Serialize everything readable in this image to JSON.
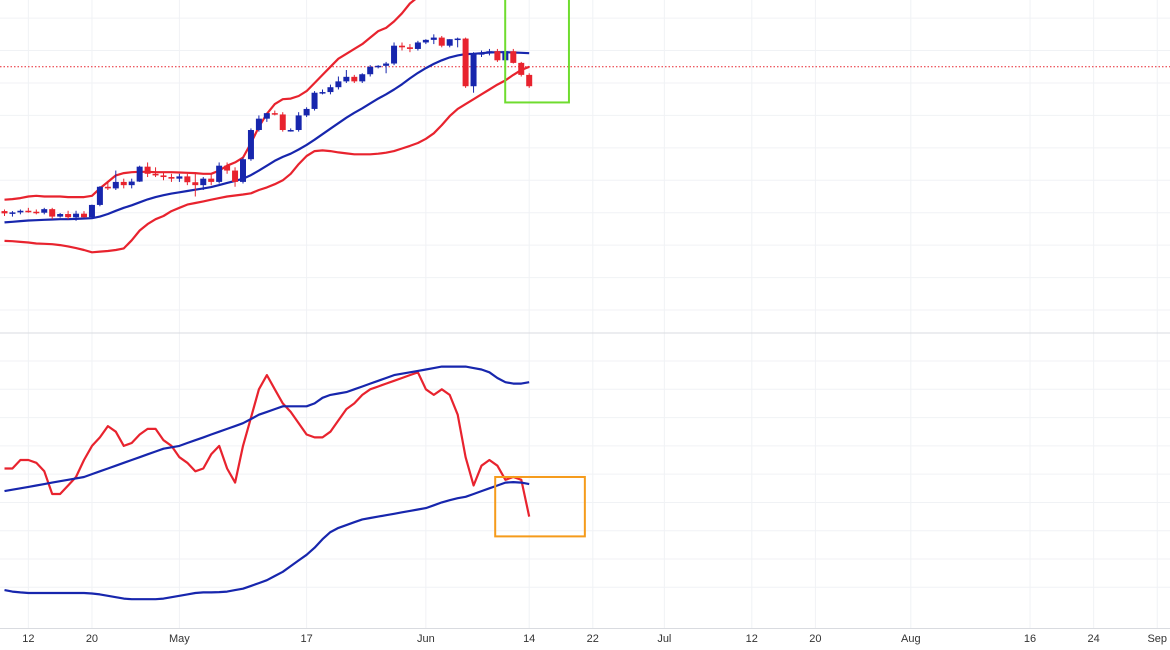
{
  "chart_data": [
    {
      "type": "candlestick",
      "panel": "price",
      "overlay": "bollinger-bands",
      "price_range": [
        0,
        100
      ],
      "grid": true,
      "dates": [
        "Apr 9",
        "Apr 10",
        "Apr 11",
        "Apr 12",
        "Apr 13",
        "Apr 14",
        "Apr 15",
        "Apr 16",
        "Apr 17",
        "Apr 18",
        "Apr 19",
        "Apr 20",
        "Apr 21",
        "Apr 22",
        "Apr 23",
        "Apr 24",
        "Apr 25",
        "Apr 26",
        "Apr 27",
        "Apr 28",
        "Apr 29",
        "Apr 30",
        "May 1",
        "May 2",
        "May 3",
        "May 4",
        "May 5",
        "May 6",
        "May 7",
        "May 8",
        "May 9",
        "May 10",
        "May 11",
        "May 12",
        "May 13",
        "May 14",
        "May 15",
        "May 16",
        "May 17",
        "May 18",
        "May 19",
        "May 20",
        "May 21",
        "May 22",
        "May 23",
        "May 24",
        "May 25",
        "May 26",
        "May 27",
        "May 28",
        "May 29",
        "May 30",
        "May 31",
        "Jun 1",
        "Jun 2",
        "Jun 3",
        "Jun 4",
        "Jun 5",
        "Jun 6",
        "Jun 7",
        "Jun 8",
        "Jun 9",
        "Jun 10",
        "Jun 11",
        "Jun 12",
        "Jun 13",
        "Jun 14"
      ],
      "candles": [
        [
          30.5,
          31.0,
          29.0,
          29.8
        ],
        [
          29.8,
          30.5,
          28.8,
          30.1
        ],
        [
          30.1,
          31.0,
          29.5,
          30.6
        ],
        [
          30.6,
          31.5,
          30.0,
          30.3
        ],
        [
          30.3,
          31.0,
          29.5,
          30.0
        ],
        [
          30.0,
          31.5,
          29.5,
          31.1
        ],
        [
          31.1,
          31.5,
          28.0,
          28.8
        ],
        [
          28.8,
          29.9,
          28.5,
          29.6
        ],
        [
          29.6,
          30.6,
          28.0,
          28.6
        ],
        [
          28.6,
          30.6,
          27.5,
          29.7
        ],
        [
          29.7,
          30.5,
          28.5,
          28.6
        ],
        [
          28.6,
          32.5,
          28.5,
          32.4
        ],
        [
          32.4,
          38.2,
          32.0,
          38.0
        ],
        [
          38.0,
          39.5,
          37.0,
          37.5
        ],
        [
          37.5,
          43.0,
          37.0,
          39.5
        ],
        [
          39.5,
          40.5,
          37.5,
          38.5
        ],
        [
          38.5,
          40.5,
          37.5,
          39.6
        ],
        [
          39.6,
          44.5,
          39.5,
          44.2
        ],
        [
          44.2,
          45.5,
          41.0,
          42.0
        ],
        [
          42.0,
          44.0,
          41.0,
          41.5
        ],
        [
          41.5,
          42.5,
          40.0,
          41.0
        ],
        [
          41.0,
          42.0,
          39.5,
          40.5
        ],
        [
          40.5,
          42.0,
          39.5,
          41.2
        ],
        [
          41.2,
          42.0,
          38.5,
          39.4
        ],
        [
          39.4,
          42.0,
          35.0,
          38.5
        ],
        [
          38.5,
          41.0,
          37.0,
          40.5
        ],
        [
          40.5,
          42.0,
          38.5,
          39.5
        ],
        [
          39.5,
          45.5,
          39.0,
          44.5
        ],
        [
          44.5,
          45.5,
          42.0,
          43.0
        ],
        [
          43.0,
          44.0,
          38.0,
          39.5
        ],
        [
          39.5,
          47.0,
          39.0,
          46.5
        ],
        [
          46.5,
          56.0,
          46.0,
          55.5
        ],
        [
          55.5,
          60.0,
          55.0,
          59.0
        ],
        [
          59.0,
          60.8,
          58.0,
          60.7
        ],
        [
          60.7,
          61.5,
          60.0,
          60.3
        ],
        [
          60.3,
          61.0,
          55.0,
          55.5
        ],
        [
          55.5,
          56.0,
          55.0,
          55.5
        ],
        [
          55.5,
          61.0,
          55.0,
          60.0
        ],
        [
          60.0,
          62.5,
          59.5,
          62.0
        ],
        [
          62.0,
          67.5,
          61.5,
          67.0
        ],
        [
          67.0,
          68.0,
          66.5,
          67.2
        ],
        [
          67.2,
          69.5,
          66.5,
          68.7
        ],
        [
          68.7,
          72.0,
          68.0,
          70.5
        ],
        [
          70.5,
          74.0,
          70.0,
          71.9
        ],
        [
          71.9,
          72.5,
          70.0,
          70.5
        ],
        [
          70.5,
          73.0,
          70.0,
          72.7
        ],
        [
          72.7,
          75.5,
          72.0,
          75.0
        ],
        [
          75.0,
          75.5,
          74.5,
          75.3
        ],
        [
          75.3,
          76.5,
          73.0,
          76.0
        ],
        [
          76.0,
          82.5,
          75.5,
          81.5
        ],
        [
          81.5,
          82.5,
          80.0,
          81.0
        ],
        [
          81.0,
          82.0,
          79.5,
          80.5
        ],
        [
          80.5,
          83.0,
          80.0,
          82.5
        ],
        [
          82.5,
          83.5,
          82.0,
          83.3
        ],
        [
          83.3,
          85.0,
          82.0,
          84.0
        ],
        [
          84.0,
          84.5,
          81.0,
          81.5
        ],
        [
          81.5,
          83.5,
          81.0,
          83.5
        ],
        [
          83.5,
          84.0,
          81.0,
          83.7
        ],
        [
          83.7,
          84.0,
          68.5,
          69.0
        ],
        [
          69.0,
          79.5,
          67.0,
          79.0
        ],
        [
          79.0,
          80.0,
          78.0,
          79.2
        ],
        [
          79.2,
          80.5,
          78.5,
          79.8
        ],
        [
          79.8,
          80.5,
          76.5,
          77.0
        ],
        [
          77.0,
          80.5,
          76.0,
          79.8
        ],
        [
          79.8,
          80.5,
          76.0,
          76.2
        ],
        [
          76.2,
          76.5,
          72.0,
          72.5
        ],
        [
          72.5,
          73.0,
          68.5,
          69.0
        ]
      ],
      "bands": {
        "upper": [
          34.0,
          34.2,
          34.5,
          35.0,
          35.2,
          35.0,
          35.0,
          35.0,
          34.8,
          34.8,
          34.8,
          35.2,
          37.5,
          39.5,
          41.5,
          42.2,
          42.5,
          42.6,
          42.6,
          42.5,
          42.5,
          42.5,
          42.4,
          42.3,
          42.2,
          42.0,
          42.0,
          43.0,
          44.5,
          45.5,
          47.0,
          51.5,
          56.5,
          60.5,
          63.5,
          65.0,
          65.2,
          66.0,
          67.5,
          70.0,
          72.5,
          75.0,
          77.5,
          79.0,
          80.5,
          82.0,
          84.0,
          86.0,
          87.0,
          89.0,
          91.5,
          94.5,
          96.5,
          97.8,
          98.5,
          99.0,
          99.3,
          99.5,
          99.8,
          99.8,
          99.8,
          99.7,
          99.2,
          98.5,
          97.0,
          96.0,
          96.2
        ],
        "middle": [
          27.0,
          27.2,
          27.4,
          27.6,
          27.7,
          27.8,
          27.9,
          28.0,
          28.0,
          28.1,
          28.2,
          28.3,
          28.8,
          29.6,
          30.6,
          31.5,
          32.3,
          33.2,
          34.1,
          34.8,
          35.4,
          35.9,
          36.3,
          36.7,
          37.1,
          37.5,
          37.9,
          38.5,
          39.2,
          39.8,
          40.5,
          41.6,
          43.0,
          44.5,
          46.0,
          47.2,
          48.2,
          49.5,
          50.9,
          52.5,
          54.2,
          55.9,
          57.6,
          59.3,
          60.8,
          62.2,
          63.7,
          65.2,
          66.5,
          68.0,
          69.6,
          71.4,
          73.1,
          74.6,
          75.9,
          77.0,
          77.9,
          78.5,
          78.9,
          79.0,
          79.2,
          79.4,
          79.5,
          79.5,
          79.4,
          79.3,
          79.2
        ],
        "lower": [
          21.3,
          21.2,
          21.0,
          20.8,
          20.5,
          20.4,
          20.3,
          20.0,
          19.6,
          19.1,
          18.5,
          17.8,
          18.0,
          18.2,
          18.5,
          19.0,
          21.5,
          24.5,
          26.5,
          28.0,
          29.0,
          30.5,
          31.5,
          32.5,
          33.0,
          33.5,
          34.0,
          34.5,
          35.0,
          35.3,
          35.6,
          36.0,
          37.0,
          37.8,
          38.8,
          40.0,
          42.0,
          45.0,
          47.5,
          49.0,
          49.2,
          49.0,
          48.6,
          48.3,
          48.0,
          48.0,
          48.0,
          48.2,
          48.5,
          49.0,
          49.8,
          50.6,
          51.5,
          52.8,
          54.5,
          57.0,
          59.8,
          62.0,
          63.5,
          65.0,
          66.5,
          68.0,
          69.5,
          70.8,
          72.5,
          74.0,
          75.0
        ]
      },
      "current_price": 75.0
    },
    {
      "type": "line",
      "panel": "oscillator",
      "value_range": [
        0,
        100
      ],
      "grid": true,
      "series": [
        {
          "role": "oscillator",
          "color": "#e8232e",
          "values": [
            52.0,
            52.0,
            55.0,
            55.0,
            54.0,
            51.0,
            43.0,
            43.0,
            46.0,
            49.0,
            55.0,
            60.0,
            63.0,
            67.0,
            65.0,
            60.0,
            61.0,
            64.0,
            66.0,
            66.0,
            62.0,
            60.0,
            56.0,
            54.0,
            51.0,
            52.0,
            57.0,
            60.0,
            52.0,
            47.0,
            60.0,
            70.0,
            80.0,
            85.0,
            80.0,
            75.0,
            72.0,
            68.0,
            64.0,
            63.0,
            63.0,
            65.0,
            69.0,
            73.0,
            75.0,
            78.0,
            80.0,
            81.0,
            82.0,
            83.0,
            84.0,
            85.0,
            86.0,
            80.0,
            78.0,
            80.0,
            78.0,
            71.0,
            56.0,
            46.0,
            53.0,
            55.0,
            53.0,
            48.0,
            49.0,
            48.0,
            35.0
          ]
        },
        {
          "role": "upper-band",
          "color": "#1726ad",
          "values": [
            44.0,
            44.5,
            45.0,
            45.5,
            46.0,
            46.5,
            47.0,
            47.5,
            48.0,
            48.5,
            49.0,
            50.0,
            51.0,
            52.0,
            53.0,
            54.0,
            55.0,
            56.0,
            57.0,
            58.0,
            59.0,
            59.5,
            60.0,
            61.0,
            62.0,
            63.0,
            64.0,
            65.0,
            66.0,
            67.0,
            68.0,
            69.5,
            71.0,
            72.0,
            73.0,
            74.0,
            74.0,
            74.0,
            74.0,
            75.0,
            77.0,
            78.0,
            78.5,
            79.0,
            80.0,
            81.0,
            82.0,
            83.0,
            84.0,
            85.0,
            85.5,
            86.0,
            86.5,
            87.0,
            87.5,
            88.0,
            88.0,
            88.0,
            88.0,
            87.5,
            87.0,
            86.0,
            84.0,
            82.5,
            82.0,
            82.0,
            82.5
          ]
        },
        {
          "role": "lower-band",
          "color": "#1726ad",
          "values": [
            9.0,
            8.5,
            8.2,
            8.0,
            8.0,
            8.0,
            8.0,
            8.0,
            8.0,
            8.0,
            8.0,
            7.8,
            7.5,
            7.0,
            6.5,
            6.0,
            5.8,
            5.8,
            5.8,
            5.8,
            6.0,
            6.5,
            7.0,
            7.5,
            8.0,
            8.2,
            8.2,
            8.3,
            8.5,
            9.0,
            9.5,
            10.5,
            11.5,
            12.5,
            14.0,
            15.5,
            17.5,
            19.5,
            21.5,
            24.0,
            27.0,
            29.5,
            31.0,
            32.0,
            33.0,
            34.0,
            34.5,
            35.0,
            35.5,
            36.0,
            36.5,
            37.0,
            37.5,
            38.0,
            39.0,
            40.0,
            40.8,
            41.5,
            42.0,
            43.0,
            44.0,
            45.0,
            46.0,
            47.0,
            47.2,
            47.0,
            46.5
          ]
        }
      ]
    }
  ],
  "x_axis": {
    "ticks": [
      {
        "label": "12",
        "x": "Apr 12"
      },
      {
        "label": "20",
        "x": "Apr 20"
      },
      {
        "label": "May",
        "x": "May 1"
      },
      {
        "label": "17",
        "x": "May 17"
      },
      {
        "label": "Jun",
        "x": "Jun 1"
      },
      {
        "label": "14",
        "x": "Jun 14"
      },
      {
        "label": "22",
        "x": "Jun 22"
      },
      {
        "label": "Jul",
        "x": "Jul 1"
      },
      {
        "label": "12",
        "x": "Jul 12"
      },
      {
        "label": "20",
        "x": "Jul 20"
      },
      {
        "label": "Aug",
        "x": "Aug 1"
      },
      {
        "label": "16",
        "x": "Aug 16"
      },
      {
        "label": "24",
        "x": "Aug 24"
      },
      {
        "label": "Sep",
        "x": "Sep 1"
      }
    ]
  },
  "colors": {
    "bull": "#1726ad",
    "bear": "#e8232e",
    "band": "#e8232e",
    "basis": "#1726ad",
    "grid": "#f0f2f5",
    "price_line": "#e8232e",
    "highlight_green": "#6fdc2f",
    "highlight_orange": "#f59b1b"
  }
}
